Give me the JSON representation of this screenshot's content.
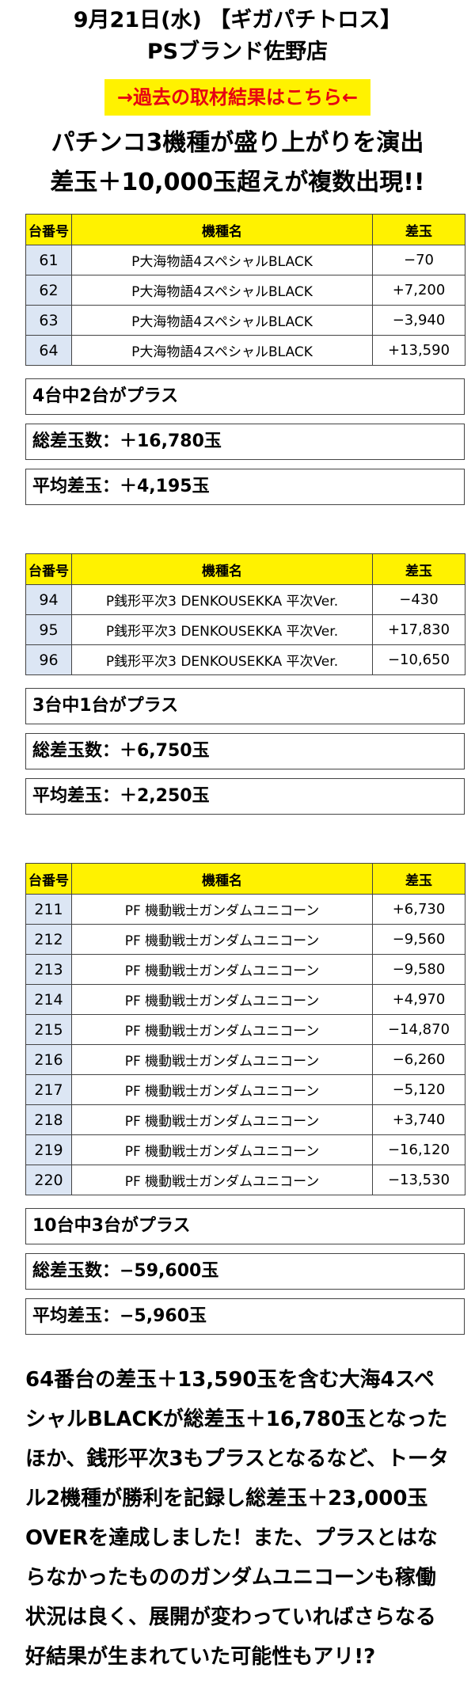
{
  "header": {
    "date_title": "9月21日(水) 【ギガパチトロス】",
    "store_name": "PSブランド佐野店",
    "link_text": "→過去の取材結果はこちら←"
  },
  "headline": {
    "line1": "パチンコ3機種が盛り上がりを演出",
    "line2": "差玉＋10,000玉超えが複数出現!!"
  },
  "table_headers": {
    "num": "台番号",
    "model": "機種名",
    "diff": "差玉"
  },
  "groups": [
    {
      "rows": [
        {
          "num": "61",
          "model": "P大海物語4スペシャルBLACK",
          "diff": "−70"
        },
        {
          "num": "62",
          "model": "P大海物語4スペシャルBLACK",
          "diff": "+7,200"
        },
        {
          "num": "63",
          "model": "P大海物語4スペシャルBLACK",
          "diff": "−3,940"
        },
        {
          "num": "64",
          "model": "P大海物語4スペシャルBLACK",
          "diff": "+13,590"
        }
      ],
      "plus_count": "4台中2台がプラス",
      "total": "総差玉数：＋16,780玉",
      "average": "平均差玉：＋4,195玉"
    },
    {
      "rows": [
        {
          "num": "94",
          "model": "P銭形平次3 DENKOUSEKKA 平次Ver.",
          "diff": "−430"
        },
        {
          "num": "95",
          "model": "P銭形平次3 DENKOUSEKKA 平次Ver.",
          "diff": "+17,830"
        },
        {
          "num": "96",
          "model": "P銭形平次3 DENKOUSEKKA 平次Ver.",
          "diff": "−10,650"
        }
      ],
      "plus_count": "3台中1台がプラス",
      "total": "総差玉数：＋6,750玉",
      "average": "平均差玉：＋2,250玉"
    },
    {
      "rows": [
        {
          "num": "211",
          "model": "PF 機動戦士ガンダムユニコーン",
          "diff": "+6,730"
        },
        {
          "num": "212",
          "model": "PF 機動戦士ガンダムユニコーン",
          "diff": "−9,560"
        },
        {
          "num": "213",
          "model": "PF 機動戦士ガンダムユニコーン",
          "diff": "−9,580"
        },
        {
          "num": "214",
          "model": "PF 機動戦士ガンダムユニコーン",
          "diff": "+4,970"
        },
        {
          "num": "215",
          "model": "PF 機動戦士ガンダムユニコーン",
          "diff": "−14,870"
        },
        {
          "num": "216",
          "model": "PF 機動戦士ガンダムユニコーン",
          "diff": "−6,260"
        },
        {
          "num": "217",
          "model": "PF 機動戦士ガンダムユニコーン",
          "diff": "−5,120"
        },
        {
          "num": "218",
          "model": "PF 機動戦士ガンダムユニコーン",
          "diff": "+3,740"
        },
        {
          "num": "219",
          "model": "PF 機動戦士ガンダムユニコーン",
          "diff": "−16,120"
        },
        {
          "num": "220",
          "model": "PF 機動戦士ガンダムユニコーン",
          "diff": "−13,530"
        }
      ],
      "plus_count": "10台中3台がプラス",
      "total": "総差玉数：−59,600玉",
      "average": "平均差玉：−5,960玉"
    }
  ],
  "body": {
    "text": "64番台の差玉＋13,590玉を含む大海4スペシャルBLACKが総差玉＋16,780玉となったほか、銭形平次3もプラスとなるなど、トータル2機種が勝利を記録し総差玉＋23,000玉OVERを達成しました！また、プラスとはならなかったもののガンダムユニコーンも稼働状況は良く、展開が変わっていればさらなる好結果が生まれていた可能性もアリ!?"
  },
  "colors": {
    "header_bg": "#fff200",
    "num_cell_bg": "#dce6f4",
    "link_text": "#e60012"
  }
}
